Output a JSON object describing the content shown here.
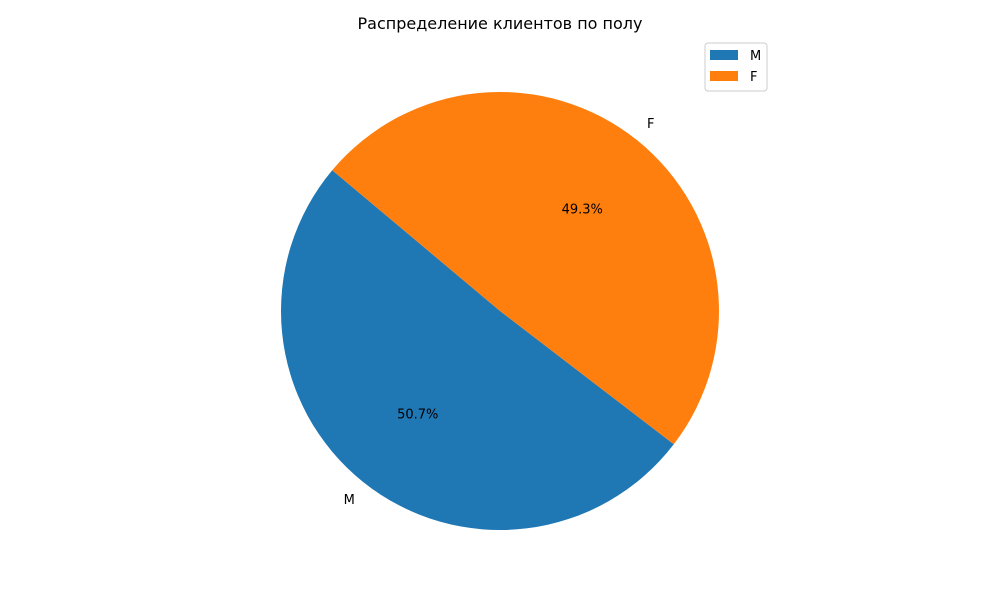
{
  "chart_data": {
    "type": "pie",
    "title": "Распределение клиентов по полу",
    "categories": [
      "M",
      "F"
    ],
    "values": [
      50.7,
      49.3
    ],
    "percent_labels": [
      "50.7%",
      "49.3%"
    ],
    "colors": [
      "#1f77b4",
      "#ff7f0e"
    ],
    "start_angle_deg": 140,
    "direction": "counterclockwise",
    "legend": {
      "placement": "top-right",
      "entries": [
        "M",
        "F"
      ]
    }
  }
}
